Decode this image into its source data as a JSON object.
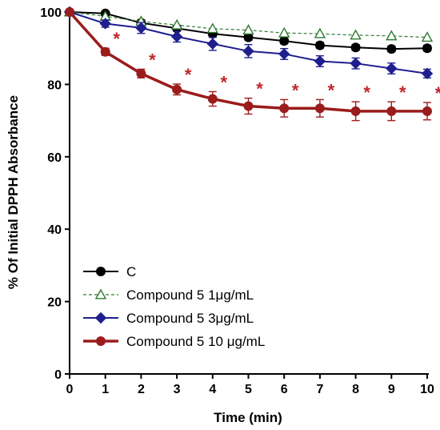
{
  "chart_data": {
    "type": "line",
    "title": "",
    "xlabel": "Time (min)",
    "ylabel": "% Of Initial DPPH Absorbance",
    "xlim": [
      0,
      10
    ],
    "ylim": [
      0,
      100
    ],
    "x_ticks": [
      "0",
      "1",
      "2",
      "3",
      "4",
      "5",
      "6",
      "7",
      "8",
      "9",
      "10"
    ],
    "y_ticks": [
      "0",
      "20",
      "40",
      "60",
      "80",
      "100"
    ],
    "grid": false,
    "legend_position": "bottom-left",
    "x": [
      0,
      1,
      2,
      3,
      4,
      5,
      6,
      7,
      8,
      9,
      10
    ],
    "series": [
      {
        "name": "C",
        "values": [
          100,
          99.6,
          97.0,
          95.5,
          94.0,
          93.0,
          92.0,
          90.8,
          90.2,
          89.8,
          90.0
        ],
        "errors": [
          0.4,
          0.5,
          0.8,
          0.8,
          0.8,
          0.8,
          0.8,
          0.8,
          0.8,
          0.8,
          0.8
        ],
        "color": "#000000",
        "marker": "circle",
        "line_style": "solid"
      },
      {
        "name": "Compound 5 1μg/mL",
        "values": [
          100,
          98.8,
          97.4,
          96.4,
          95.4,
          95.0,
          94.2,
          94.0,
          93.6,
          93.4,
          93.0
        ],
        "errors": [
          0.3,
          0.4,
          0.5,
          0.5,
          0.5,
          0.5,
          0.5,
          0.5,
          0.5,
          0.5,
          0.5
        ],
        "color": "#2f7a2f",
        "marker": "triangle-open",
        "line_style": "dashed"
      },
      {
        "name": "Compound 5 3μg/mL",
        "values": [
          100,
          96.8,
          95.6,
          93.2,
          91.2,
          89.2,
          88.4,
          86.4,
          85.8,
          84.4,
          83.0
        ],
        "errors": [
          0.5,
          1.0,
          1.5,
          1.5,
          1.8,
          1.8,
          1.5,
          1.5,
          1.5,
          1.5,
          1.2
        ],
        "color": "#1f1f8f",
        "marker": "diamond",
        "line_style": "solid"
      },
      {
        "name": "Compound 5 10 μg/mL",
        "values": [
          100,
          89.0,
          83.0,
          78.6,
          76.0,
          74.0,
          73.4,
          73.4,
          72.6,
          72.6,
          72.6
        ],
        "errors": [
          0.5,
          1.0,
          1.2,
          1.5,
          2.0,
          2.2,
          2.4,
          2.4,
          2.6,
          2.6,
          2.4
        ],
        "color": "#9b1c1c",
        "marker": "circle",
        "line_style": "solid-thick"
      }
    ],
    "annotations": {
      "significance_symbol": "*",
      "significance_x": [
        1,
        2,
        3,
        4,
        5,
        6,
        7,
        8,
        9,
        10
      ],
      "color": "#c0262a"
    }
  }
}
